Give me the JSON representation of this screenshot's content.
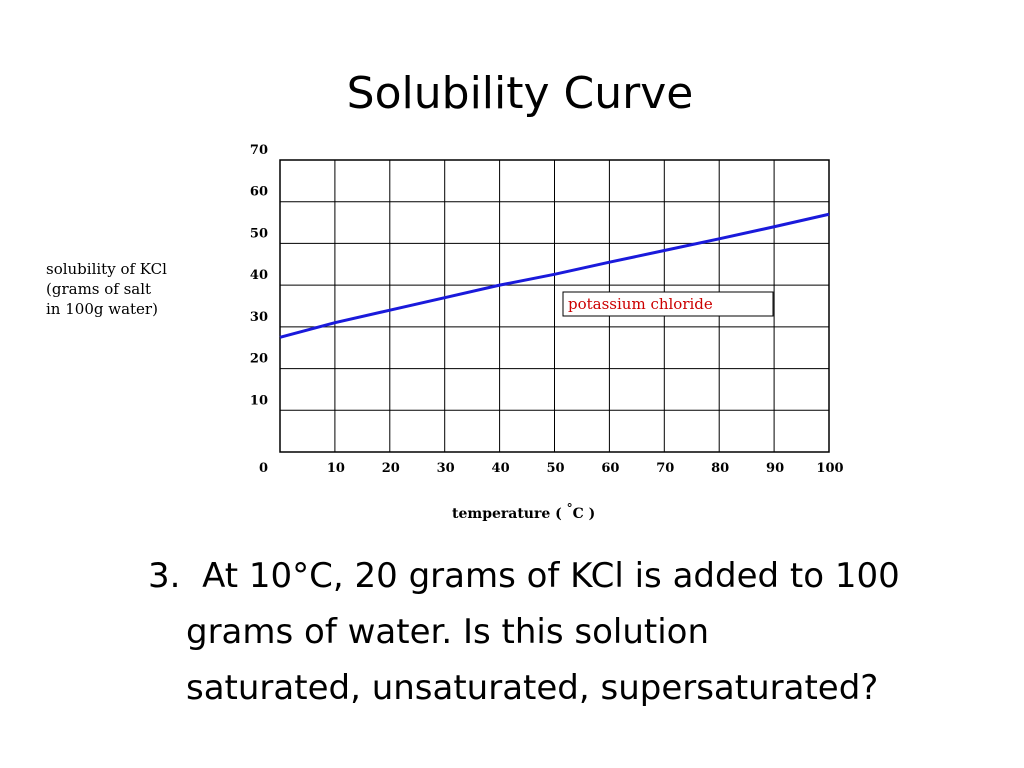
{
  "slide": {
    "title": "Solubility Curve"
  },
  "chart_data": {
    "type": "line",
    "title": "",
    "xlabel": "temperature ( °C )",
    "xlabel_parts": [
      "temperature ( ",
      "°",
      "C )"
    ],
    "ylabel_lines": [
      "solubility of KCl",
      "(grams of salt",
      "in 100g water)"
    ],
    "xlim": [
      0,
      100
    ],
    "ylim": [
      0,
      70
    ],
    "x_ticks": [
      0,
      10,
      20,
      30,
      40,
      50,
      60,
      70,
      80,
      90,
      100
    ],
    "x_tick_labels": [
      "10",
      "20",
      "30",
      "40",
      "50",
      "60",
      "70",
      "80",
      "90",
      "100"
    ],
    "y_ticks": [
      0,
      10,
      20,
      30,
      40,
      50,
      60,
      70
    ],
    "y_tick_labels": [
      "0",
      "10",
      "20",
      "30",
      "40",
      "50",
      "60",
      "70"
    ],
    "grid": true,
    "series": [
      {
        "name": "potassium chloride",
        "color": "#1a1adb",
        "x": [
          0,
          10,
          20,
          30,
          40,
          50,
          60,
          70,
          80,
          90,
          100
        ],
        "y": [
          27.5,
          31,
          34,
          37,
          40,
          42.6,
          45.5,
          48.3,
          51.1,
          54,
          57
        ]
      }
    ],
    "annotation_box_color": "#cc0000"
  },
  "question": {
    "number": "3.",
    "line1": "At 10°C, 20 grams of KCl is added to 100",
    "line2": "grams of water.  Is this solution",
    "line3": "saturated, unsaturated, supersaturated?"
  }
}
